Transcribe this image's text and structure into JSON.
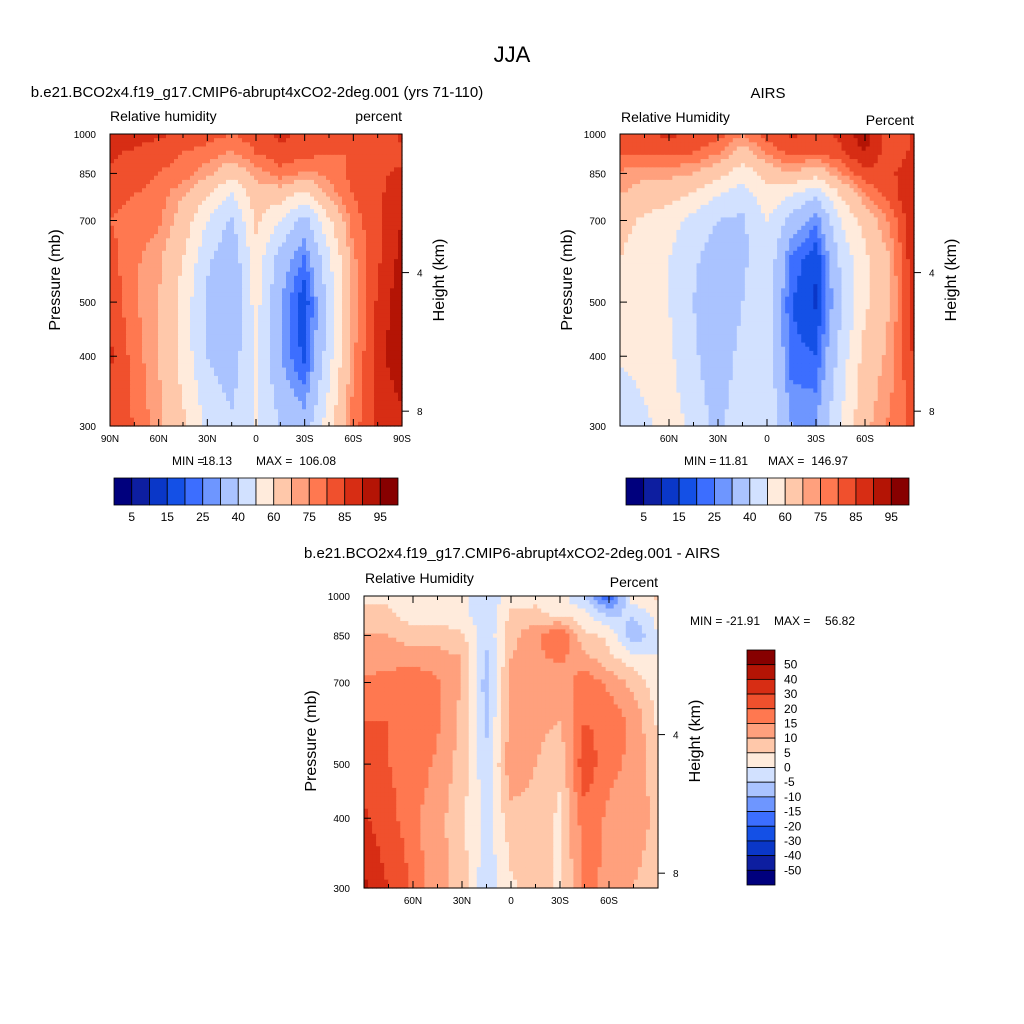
{
  "figure": {
    "title": "JJA"
  },
  "colors": {
    "rh_levels": [
      5,
      10,
      15,
      20,
      25,
      30,
      40,
      50,
      60,
      70,
      75,
      80,
      85,
      90,
      95
    ],
    "rh_palette": [
      "#00007d",
      "#0d1ea0",
      "#0a37c8",
      "#1450e6",
      "#3c6eff",
      "#6e96ff",
      "#aac3ff",
      "#d2e1ff",
      "#ffebdc",
      "#ffc8aa",
      "#ffa07d",
      "#ff7850",
      "#f0502d",
      "#d72d14",
      "#b41405",
      "#870000"
    ],
    "diff_levels": [
      -50,
      -40,
      -30,
      -20,
      -15,
      -10,
      -5,
      0,
      5,
      10,
      15,
      20,
      30,
      40,
      50
    ],
    "diff_palette": [
      "#00007d",
      "#0d1ea0",
      "#0a37c8",
      "#1450e6",
      "#3c6eff",
      "#6e96ff",
      "#aac3ff",
      "#d2e1ff",
      "#ffebdc",
      "#ffc8aa",
      "#ffa07d",
      "#ff7850",
      "#f0502d",
      "#d72d14",
      "#b41405",
      "#870000"
    ]
  },
  "chart_data": [
    {
      "type": "heatmap",
      "title": "b.e21.BCO2x4.f19_g17.CMIP6-abrupt4xCO2-2deg.001 (yrs 71-110)",
      "left_label": "Relative humidity",
      "right_label": "percent",
      "ylabel": "Pressure (mb)",
      "ylabel_right": "Height (km)",
      "xlim": [
        90,
        -90
      ],
      "ylim": [
        1000,
        300
      ],
      "y_log": true,
      "x_ticks": [
        {
          "v": 90,
          "label": "90N"
        },
        {
          "v": 60,
          "label": "60N"
        },
        {
          "v": 30,
          "label": "30N"
        },
        {
          "v": 0,
          "label": "0"
        },
        {
          "v": -30,
          "label": "30S"
        },
        {
          "v": -60,
          "label": "60S"
        },
        {
          "v": -90,
          "label": "90S"
        }
      ],
      "y_ticks": [
        1000,
        850,
        700,
        500,
        400,
        300
      ],
      "height_ticks": [
        {
          "v": 4,
          "label": "4"
        },
        {
          "v": 8,
          "label": "8"
        }
      ],
      "stats": {
        "min_label": "MIN =",
        "min": "18.13",
        "max_label": "MAX =",
        "max": "106.08"
      },
      "colorbar_labels": [
        "5",
        "15",
        "25",
        "40",
        "60",
        "75",
        "85",
        "95"
      ],
      "lat": [
        90,
        75,
        60,
        45,
        30,
        15,
        0,
        -15,
        -30,
        -45,
        -60,
        -75,
        -90
      ],
      "p": [
        1000,
        925,
        850,
        775,
        700,
        600,
        500,
        400,
        300
      ],
      "values": [
        [
          90,
          88,
          86,
          84,
          82,
          80,
          83,
          86,
          84,
          82,
          80,
          82,
          86
        ],
        [
          86,
          84,
          82,
          80,
          78,
          74,
          80,
          84,
          82,
          80,
          80,
          80,
          84
        ],
        [
          84,
          82,
          80,
          78,
          72,
          64,
          72,
          78,
          74,
          76,
          82,
          84,
          86
        ],
        [
          82,
          80,
          78,
          70,
          60,
          48,
          66,
          64,
          56,
          72,
          80,
          84,
          88
        ],
        [
          80,
          78,
          76,
          66,
          50,
          38,
          62,
          50,
          36,
          58,
          78,
          84,
          90
        ],
        [
          82,
          76,
          72,
          60,
          42,
          32,
          56,
          36,
          24,
          48,
          74,
          84,
          92
        ],
        [
          84,
          76,
          70,
          56,
          38,
          30,
          54,
          30,
          16,
          44,
          72,
          86,
          94
        ],
        [
          86,
          78,
          70,
          56,
          40,
          34,
          52,
          30,
          18,
          46,
          74,
          88,
          94
        ],
        [
          82,
          80,
          72,
          62,
          48,
          42,
          50,
          40,
          34,
          56,
          78,
          86,
          88
        ]
      ],
      "blank_regions": [
        {
          "lat": [
            -55,
            -75
          ],
          "p": [
            1000,
            930
          ]
        },
        {
          "lat": [
            -85,
            -90
          ],
          "p": [
            1000,
            820
          ]
        },
        {
          "lat": [
            -87,
            -90
          ],
          "p": [
            820,
            700
          ]
        },
        {
          "lat": [
            -88,
            -90
          ],
          "p": [
            700,
            560
          ]
        }
      ]
    },
    {
      "type": "heatmap",
      "title": "AIRS",
      "left_label": "Relative Humidity",
      "right_label": "Percent",
      "ylabel": "Pressure (mb)",
      "ylabel_right": "Height (km)",
      "xlim": [
        90,
        -90
      ],
      "ylim": [
        1000,
        300
      ],
      "y_log": true,
      "x_ticks": [
        {
          "v": 60,
          "label": "60N"
        },
        {
          "v": 30,
          "label": "30N"
        },
        {
          "v": 0,
          "label": "0"
        },
        {
          "v": -30,
          "label": "30S"
        },
        {
          "v": -60,
          "label": "60S"
        }
      ],
      "y_ticks": [
        1000,
        850,
        700,
        500,
        400,
        300
      ],
      "height_ticks": [
        {
          "v": 4,
          "label": "4"
        },
        {
          "v": 8,
          "label": "8"
        }
      ],
      "stats": {
        "min_label": "MIN =",
        "min": "11.81",
        "max_label": "MAX =",
        "max": "146.97"
      },
      "colorbar_labels": [
        "5",
        "15",
        "25",
        "40",
        "60",
        "75",
        "85",
        "95"
      ],
      "lat": [
        90,
        75,
        60,
        45,
        30,
        15,
        0,
        -15,
        -30,
        -45,
        -60,
        -75,
        -90
      ],
      "p": [
        1000,
        925,
        850,
        775,
        700,
        600,
        500,
        400,
        300
      ],
      "values": [
        [
          84,
          84,
          86,
          84,
          82,
          76,
          82,
          86,
          84,
          86,
          94,
          80,
          86
        ],
        [
          80,
          80,
          82,
          80,
          76,
          66,
          76,
          82,
          80,
          84,
          90,
          82,
          86
        ],
        [
          74,
          72,
          72,
          70,
          64,
          54,
          64,
          70,
          64,
          74,
          84,
          84,
          88
        ],
        [
          70,
          66,
          64,
          58,
          50,
          44,
          56,
          50,
          40,
          60,
          74,
          82,
          90
        ],
        [
          64,
          58,
          54,
          46,
          40,
          38,
          50,
          36,
          26,
          50,
          64,
          76,
          90
        ],
        [
          60,
          54,
          50,
          42,
          34,
          38,
          48,
          24,
          16,
          42,
          58,
          70,
          90
        ],
        [
          58,
          54,
          50,
          40,
          30,
          40,
          46,
          20,
          14,
          38,
          58,
          70,
          88
        ],
        [
          52,
          54,
          52,
          42,
          32,
          44,
          46,
          22,
          20,
          44,
          64,
          72,
          86
        ],
        [
          40,
          48,
          54,
          48,
          36,
          50,
          48,
          30,
          30,
          50,
          68,
          76,
          82
        ]
      ],
      "blank_regions": [
        {
          "lat": [
            -87,
            -90
          ],
          "p": [
            1000,
            860
          ]
        }
      ]
    },
    {
      "type": "heatmap",
      "title": "b.e21.BCO2x4.f19_g17.CMIP6-abrupt4xCO2-2deg.001 - AIRS",
      "left_label": "Relative Humidity",
      "right_label": "Percent",
      "ylabel": "Pressure (mb)",
      "ylabel_right": "Height (km)",
      "xlim": [
        90,
        -90
      ],
      "ylim": [
        1000,
        300
      ],
      "y_log": true,
      "x_ticks": [
        {
          "v": 60,
          "label": "60N"
        },
        {
          "v": 30,
          "label": "30N"
        },
        {
          "v": 0,
          "label": "0"
        },
        {
          "v": -30,
          "label": "30S"
        },
        {
          "v": -60,
          "label": "60S"
        }
      ],
      "y_ticks": [
        1000,
        850,
        700,
        500,
        400,
        300
      ],
      "height_ticks": [
        {
          "v": 4,
          "label": "4"
        },
        {
          "v": 8,
          "label": "8"
        }
      ],
      "stats": {
        "min_label": "MIN =",
        "min": "-21.91",
        "max_label": "MAX =",
        "max": "56.82"
      },
      "colorbar_labels": [
        "50",
        "40",
        "30",
        "20",
        "15",
        "10",
        "5",
        "0",
        "-5",
        "-10",
        "-15",
        "-20",
        "-30",
        "-40",
        "-50"
      ],
      "lat": [
        90,
        75,
        60,
        45,
        30,
        15,
        0,
        -15,
        -30,
        -45,
        -60,
        -75,
        -90
      ],
      "p": [
        1000,
        925,
        850,
        775,
        700,
        600,
        500,
        400,
        300
      ],
      "values": [
        [
          4,
          4,
          2,
          2,
          2,
          -4,
          2,
          4,
          2,
          -6,
          -20,
          4,
          6
        ],
        [
          6,
          6,
          2,
          2,
          2,
          -4,
          6,
          6,
          4,
          2,
          -6,
          -4,
          2
        ],
        [
          10,
          10,
          8,
          8,
          6,
          -4,
          8,
          14,
          20,
          6,
          4,
          -10,
          0
        ],
        [
          12,
          12,
          12,
          12,
          10,
          -6,
          10,
          14,
          16,
          12,
          6,
          2,
          0
        ],
        [
          16,
          18,
          20,
          16,
          10,
          -8,
          12,
          14,
          12,
          18,
          14,
          8,
          2
        ],
        [
          20,
          20,
          20,
          16,
          8,
          -6,
          12,
          12,
          10,
          20,
          18,
          14,
          4
        ],
        [
          24,
          20,
          18,
          14,
          8,
          -4,
          14,
          10,
          6,
          24,
          16,
          14,
          6
        ],
        [
          32,
          22,
          16,
          12,
          6,
          -2,
          8,
          8,
          4,
          18,
          14,
          14,
          8
        ],
        [
          42,
          30,
          18,
          12,
          8,
          -4,
          4,
          8,
          4,
          16,
          14,
          10,
          6
        ]
      ],
      "blank_regions": [
        {
          "lat": [
            -49,
            -76
          ],
          "p": [
            1000,
            935
          ]
        }
      ]
    }
  ]
}
